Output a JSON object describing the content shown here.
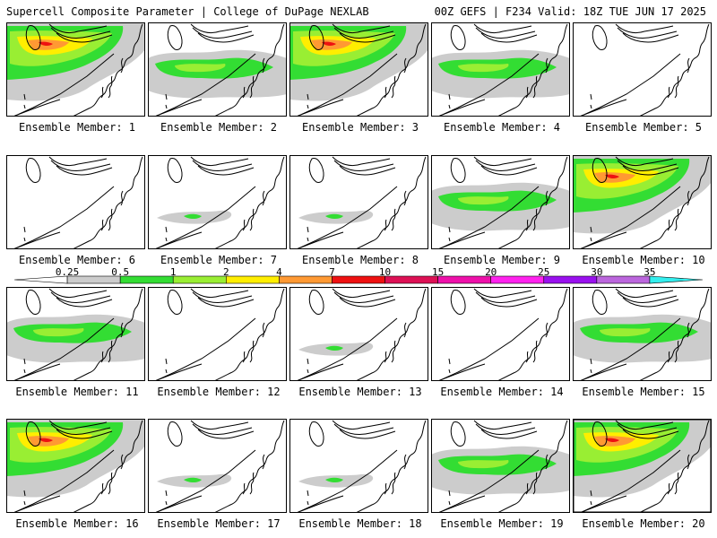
{
  "header": {
    "left": "Supercell Composite Parameter | College of DuPage NEXLAB",
    "right": "00Z GEFS | F234 Valid: 18Z TUE JUN 17 2025"
  },
  "colorbar": {
    "labels": [
      "0.25",
      "0.5",
      "1",
      "2",
      "4",
      "7",
      "10",
      "15",
      "20",
      "25",
      "30",
      "35"
    ],
    "colors": [
      "#ffffff",
      "#cccccc",
      "#33dd33",
      "#99ee33",
      "#ffee00",
      "#ff9933",
      "#ee1111",
      "#dd1155",
      "#ee11aa",
      "#ff22ee",
      "#9911ee",
      "#bb66dd",
      "#33eeee"
    ]
  },
  "panels": [
    {
      "label": "Ensemble Member: 1",
      "level": "high"
    },
    {
      "label": "Ensemble Member: 2",
      "level": "medium"
    },
    {
      "label": "Ensemble Member: 3",
      "level": "high"
    },
    {
      "label": "Ensemble Member: 4",
      "level": "medium"
    },
    {
      "label": "Ensemble Member: 5",
      "level": "none"
    },
    {
      "label": "Ensemble Member: 6",
      "level": "none"
    },
    {
      "label": "Ensemble Member: 7",
      "level": "low"
    },
    {
      "label": "Ensemble Member: 8",
      "level": "low"
    },
    {
      "label": "Ensemble Member: 9",
      "level": "medium"
    },
    {
      "label": "Ensemble Member: 10",
      "level": "high"
    },
    {
      "label": "Ensemble Member: 11",
      "level": "medium"
    },
    {
      "label": "Ensemble Member: 12",
      "level": "none"
    },
    {
      "label": "Ensemble Member: 13",
      "level": "low"
    },
    {
      "label": "Ensemble Member: 14",
      "level": "none"
    },
    {
      "label": "Ensemble Member: 15",
      "level": "medium"
    },
    {
      "label": "Ensemble Member: 16",
      "level": "high"
    },
    {
      "label": "Ensemble Member: 17",
      "level": "low"
    },
    {
      "label": "Ensemble Member: 18",
      "level": "low"
    },
    {
      "label": "Ensemble Member: 19",
      "level": "medium"
    },
    {
      "label": "Ensemble Member: 20",
      "level": "high"
    }
  ]
}
